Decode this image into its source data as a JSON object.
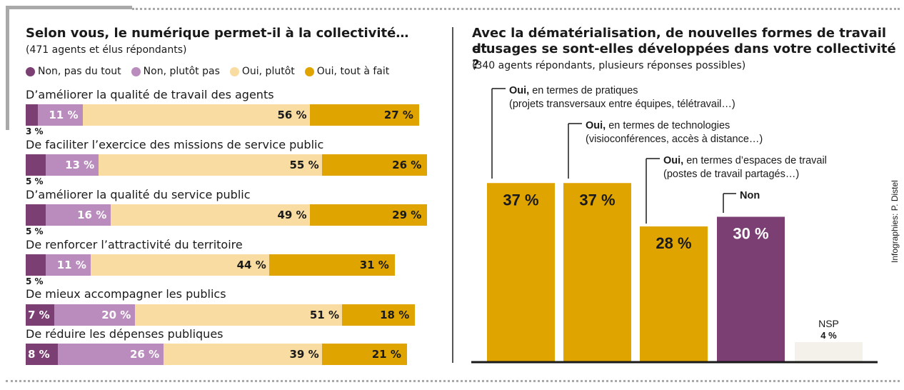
{
  "left": {
    "title": "Selon vous, le numérique permet-il à la collectivité…",
    "subtitle": "(471 agents et élus répondants)",
    "legend": [
      {
        "label": "Non, pas du tout",
        "color": "#7b3f74"
      },
      {
        "label": "Non, plutôt pas",
        "color": "#b98cbd"
      },
      {
        "label": "Oui, plutôt",
        "color": "#f8dca2"
      },
      {
        "label": "Oui, tout à fait",
        "color": "#e0a400"
      }
    ]
  },
  "right": {
    "title_line1": "Avec la dématérialisation, de nouvelles formes de travail et",
    "title_line2": "d’usages se sont-elles développées dans votre collectivité ?",
    "subtitle": "(340 agents répondants, plusieurs réponses possibles)",
    "credit": "Infographies: P. Distel"
  },
  "chart_data": [
    {
      "type": "bar",
      "stacked": true,
      "orientation": "horizontal",
      "categories": [
        "D’améliorer la qualité de travail des agents",
        "De faciliter l’exercice des missions de service public",
        "D’améliorer la qualité du service public",
        "De renforcer l’attractivité du territoire",
        "De mieux accompagner les publics",
        "De réduire les dépenses publiques"
      ],
      "series": [
        {
          "name": "Non, pas du tout",
          "values": [
            3,
            5,
            5,
            5,
            7,
            8
          ],
          "color": "#7b3f74"
        },
        {
          "name": "Non, plutôt pas",
          "values": [
            11,
            13,
            16,
            11,
            20,
            26
          ],
          "color": "#b98cbd"
        },
        {
          "name": "Oui, plutôt",
          "values": [
            56,
            55,
            49,
            44,
            51,
            39
          ],
          "color": "#f8dca2"
        },
        {
          "name": "Oui, tout à fait",
          "values": [
            27,
            26,
            29,
            31,
            18,
            21
          ],
          "color": "#e0a400"
        }
      ],
      "value_suffix": " %"
    },
    {
      "type": "bar",
      "categories": [
        {
          "bold": "Oui,",
          "rest": " en termes de pratiques",
          "line2": "(projets transversaux entre équipes, télétravail…)"
        },
        {
          "bold": "Oui,",
          "rest": " en termes de technologies",
          "line2": "(visioconférences, accès à distance…)"
        },
        {
          "bold": "Oui,",
          "rest": " en termes d’espaces de travail",
          "line2": "(postes de travail partagés…)"
        },
        {
          "bold": "Non",
          "rest": "",
          "line2": ""
        },
        {
          "bold": "",
          "rest": "NSP",
          "line2": ""
        }
      ],
      "values": [
        37,
        37,
        28,
        30,
        4
      ],
      "labels": [
        "37 %",
        "37 %",
        "28 %",
        "30 %",
        "4 %"
      ],
      "colors": [
        "#e0a400",
        "#e0a400",
        "#e0a400",
        "#7b3f74",
        "#f3f1ea"
      ]
    }
  ]
}
